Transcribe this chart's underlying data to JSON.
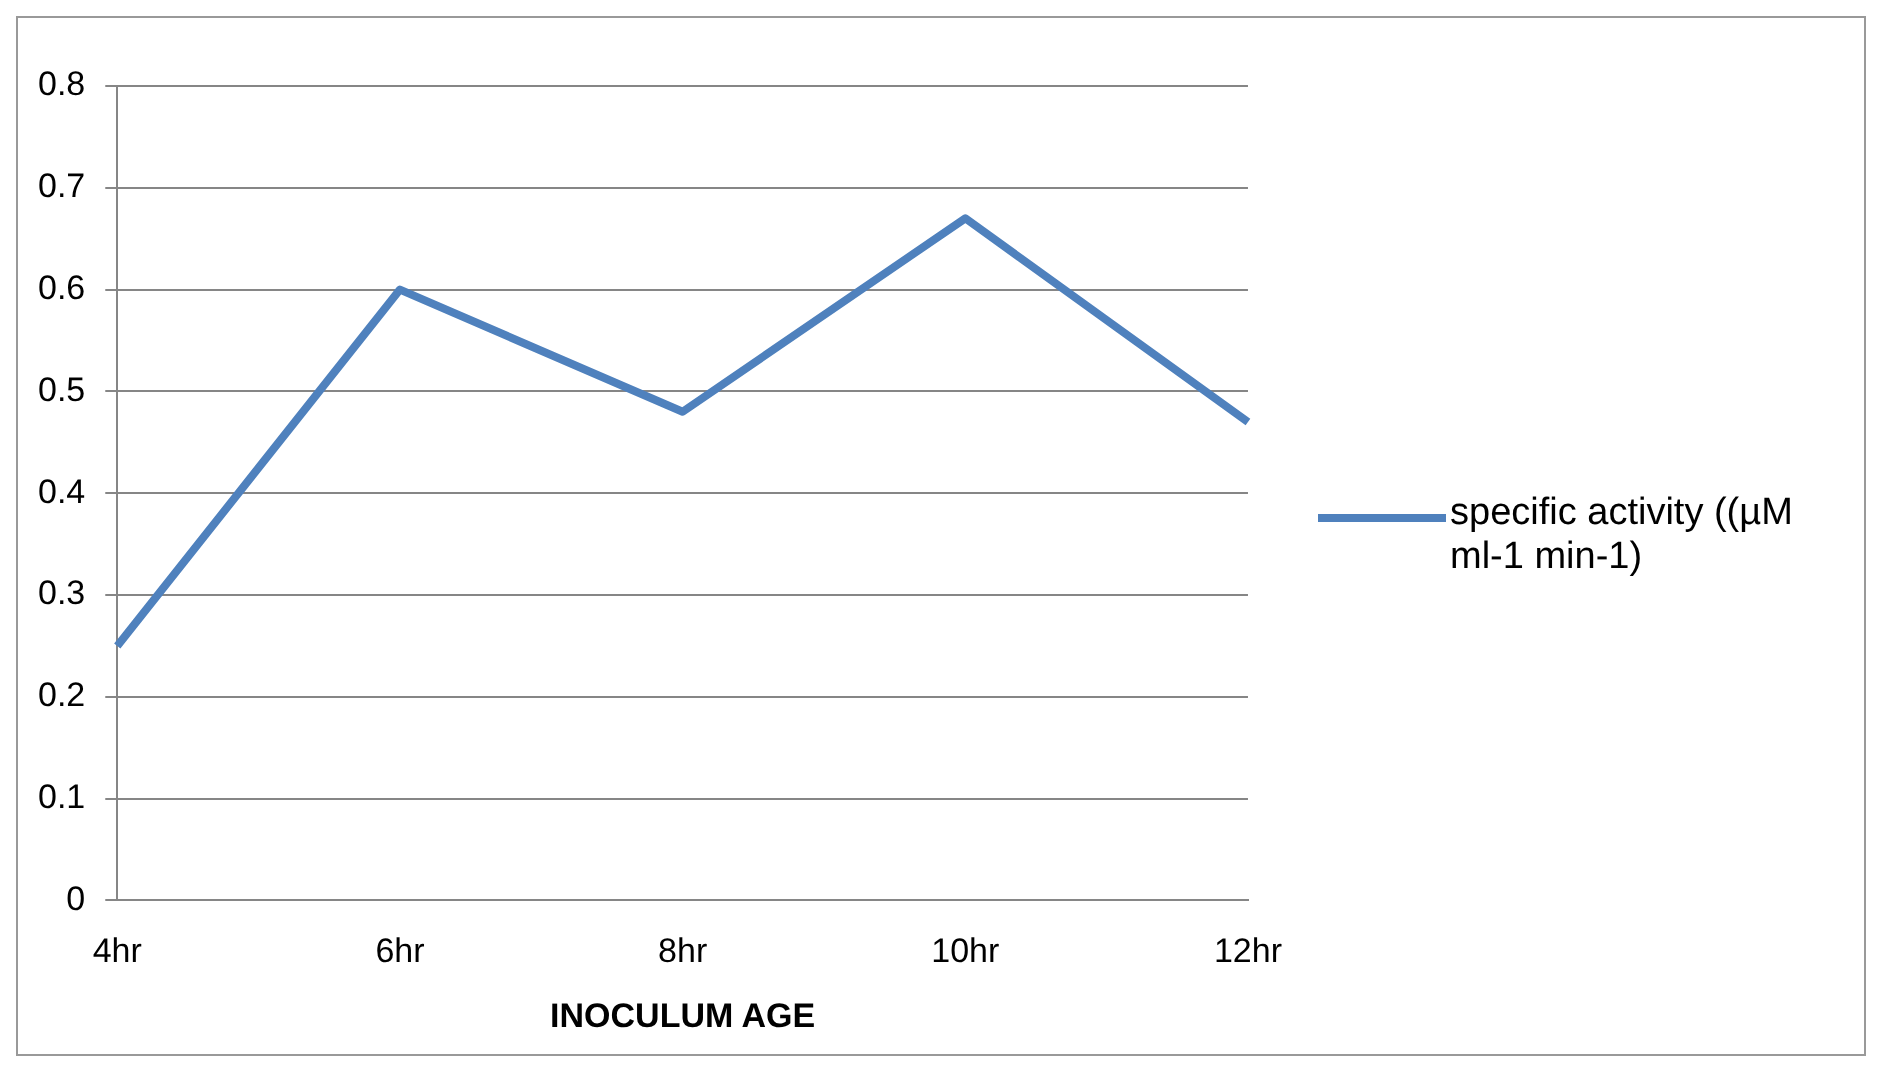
{
  "chart_data": {
    "type": "line",
    "xlabel": "INOCULUM AGE",
    "categories": [
      "4hr",
      "6hr",
      "8hr",
      "10hr",
      "12hr"
    ],
    "series": [
      {
        "name": "specific activity ((µM ml-1 min-1)",
        "color": "#4f81bd",
        "values": [
          0.25,
          0.6,
          0.48,
          0.67,
          0.47
        ]
      }
    ],
    "ylim": [
      0,
      0.8
    ],
    "yticks": [
      0,
      0.1,
      0.2,
      0.3,
      0.4,
      0.5,
      0.6,
      0.7,
      0.8
    ],
    "grid": "y",
    "legend": "right",
    "marker": "none",
    "line_style": "solid"
  }
}
